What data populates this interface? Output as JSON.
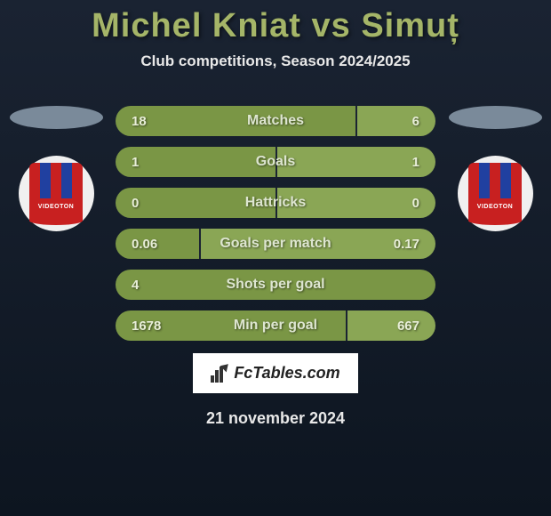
{
  "title": "Michel Kniat vs Simuț",
  "subtitle": "Club competitions, Season 2024/2025",
  "player_left": {
    "name": "Michel Kniat",
    "badge_text": "VIDEOTON"
  },
  "player_right": {
    "name": "Simuț",
    "badge_text": "VIDEOTON"
  },
  "stats": [
    {
      "label": "Matches",
      "left_val": "18",
      "right_val": "6",
      "left_pct": 75,
      "divider_pct": 75
    },
    {
      "label": "Goals",
      "left_val": "1",
      "right_val": "1",
      "left_pct": 50,
      "divider_pct": 50
    },
    {
      "label": "Hattricks",
      "left_val": "0",
      "right_val": "0",
      "left_pct": 50,
      "divider_pct": 50
    },
    {
      "label": "Goals per match",
      "left_val": "0.06",
      "right_val": "0.17",
      "left_pct": 26,
      "divider_pct": 26
    },
    {
      "label": "Shots per goal",
      "left_val": "4",
      "right_val": "",
      "left_pct": 100,
      "divider_pct": 100
    },
    {
      "label": "Min per goal",
      "left_val": "1678",
      "right_val": "667",
      "left_pct": 72,
      "divider_pct": 72
    }
  ],
  "colors": {
    "bar_left": "#7a9645",
    "bar_right": "#8aa655",
    "title_color": "#a5b568",
    "bg_top": "#1a2332",
    "bg_bottom": "#0d1520",
    "ellipse": "#7a8a9a"
  },
  "footer": {
    "brand": "FcTables.com",
    "date": "21 november 2024"
  }
}
